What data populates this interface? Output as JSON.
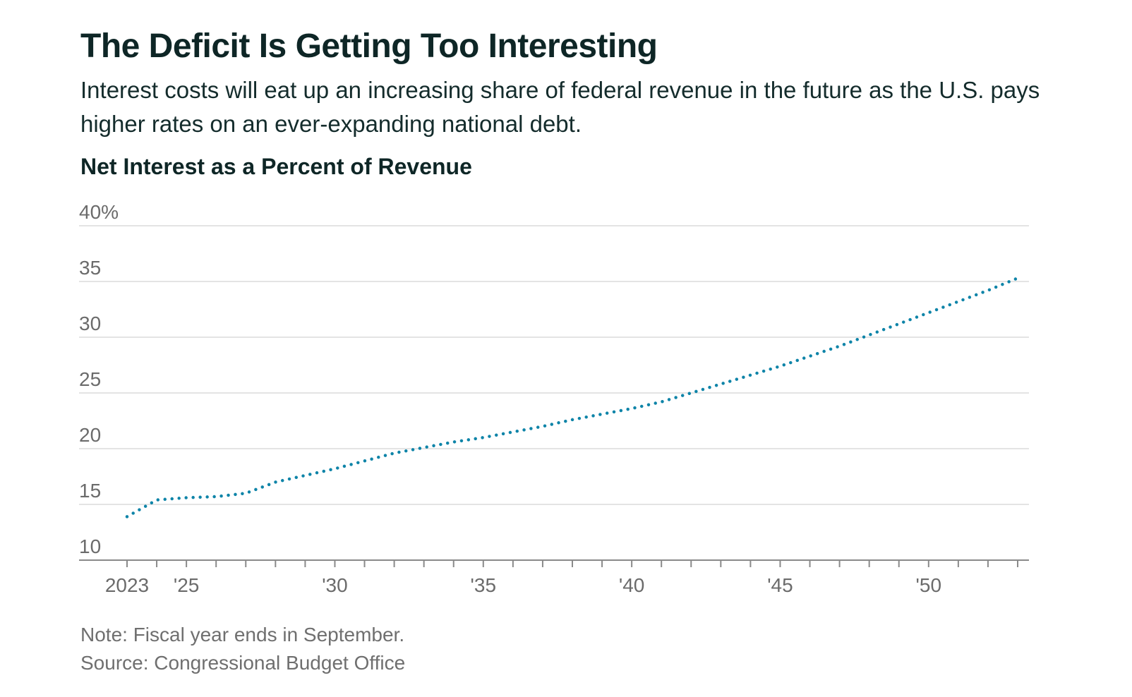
{
  "title": "The Deficit Is Getting Too Interesting",
  "subtitle": "Interest costs will eat up an increasing share of federal revenue in the future as the U.S. pays higher rates on an ever-expanding national debt.",
  "chart_heading": "Net Interest as a Percent of Revenue",
  "note": "Note: Fiscal year ends in September.",
  "source": "Source: Congressional Budget Office",
  "colors": {
    "line": "#0e84a8",
    "grid": "#dcdcdc",
    "axis": "#8a8a8a",
    "tick_text": "#6b6b6b"
  },
  "chart_data": {
    "type": "line",
    "title": "Net Interest as a Percent of Revenue",
    "xlabel": "",
    "ylabel": "",
    "line_style": "dotted",
    "grid": true,
    "xlim": [
      2023,
      2053
    ],
    "ylim": [
      10,
      40
    ],
    "y_ticks": [
      {
        "value": 40,
        "label": "40%"
      },
      {
        "value": 35,
        "label": "35"
      },
      {
        "value": 30,
        "label": "30"
      },
      {
        "value": 25,
        "label": "25"
      },
      {
        "value": 20,
        "label": "20"
      },
      {
        "value": 15,
        "label": "15"
      },
      {
        "value": 10,
        "label": "10"
      }
    ],
    "x_ticks": [
      {
        "value": 2023,
        "label": "2023"
      },
      {
        "value": 2025,
        "label": "'25"
      },
      {
        "value": 2030,
        "label": "'30"
      },
      {
        "value": 2035,
        "label": "'35"
      },
      {
        "value": 2040,
        "label": "'40"
      },
      {
        "value": 2045,
        "label": "'45"
      },
      {
        "value": 2050,
        "label": "'50"
      }
    ],
    "x_minor_ticks": [
      2024,
      2026,
      2027,
      2028,
      2029,
      2031,
      2032,
      2033,
      2034,
      2036,
      2037,
      2038,
      2039,
      2041,
      2042,
      2043,
      2044,
      2046,
      2047,
      2048,
      2049,
      2051,
      2052,
      2053
    ],
    "series": [
      {
        "x": [
          2023,
          2024,
          2025,
          2026,
          2027,
          2028,
          2029,
          2030,
          2031,
          2032,
          2033,
          2034,
          2035,
          2036,
          2037,
          2038,
          2039,
          2040,
          2041,
          2042,
          2043,
          2044,
          2045,
          2046,
          2047,
          2048,
          2049,
          2050,
          2051,
          2052,
          2053
        ],
        "values": [
          13.9,
          15.4,
          15.6,
          15.7,
          16.0,
          17.0,
          17.6,
          18.2,
          18.9,
          19.6,
          20.1,
          20.6,
          21.0,
          21.5,
          22.0,
          22.6,
          23.1,
          23.6,
          24.2,
          25.0,
          25.8,
          26.6,
          27.4,
          28.3,
          29.2,
          30.2,
          31.2,
          32.2,
          33.2,
          34.2,
          35.3
        ]
      }
    ]
  }
}
